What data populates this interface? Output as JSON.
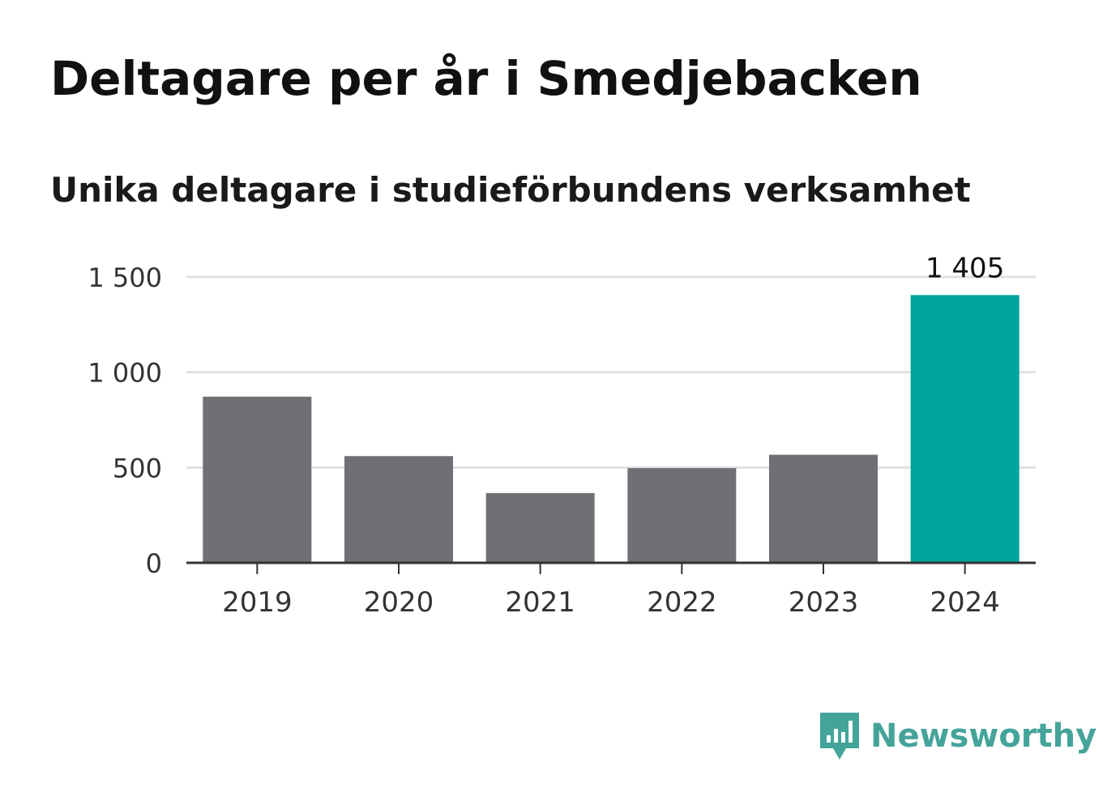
{
  "title": "Deltagare per år i Smedjebacken",
  "subtitle": "Unika deltagare i studieförbundens verksamhet",
  "brand": "Newsworthy",
  "colors": {
    "bar": "#706f75",
    "highlight": "#00a49a",
    "grid": "#e0e0e0",
    "axis": "#333333",
    "brand": "#44a49a"
  },
  "chart_data": {
    "type": "bar",
    "title": "Deltagare per år i Smedjebacken",
    "subtitle": "Unika deltagare i studieförbundens verksamhet",
    "categories": [
      "2019",
      "2020",
      "2021",
      "2022",
      "2023",
      "2024"
    ],
    "values": [
      872,
      560,
      366,
      497,
      567,
      1405
    ],
    "highlight_index": 5,
    "data_labels": [
      {
        "index": 5,
        "text": "1 405"
      }
    ],
    "ylim": [
      0,
      1500
    ],
    "yticks": [
      0,
      500,
      1000,
      1500
    ],
    "ytick_labels": [
      "0",
      "500",
      "1 000",
      "1 500"
    ],
    "xlabel": "",
    "ylabel": "",
    "grid": true,
    "legend": false
  }
}
